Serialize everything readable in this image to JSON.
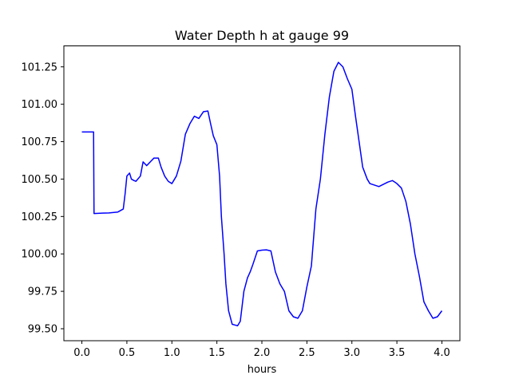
{
  "chart_data": {
    "type": "line",
    "title": "Water Depth h at gauge 99",
    "xlabel": "hours",
    "ylabel": "",
    "xlim": [
      -0.2,
      4.2
    ],
    "ylim": [
      99.42,
      101.39
    ],
    "xticks": [
      0.0,
      0.5,
      1.0,
      1.5,
      2.0,
      2.5,
      3.0,
      3.5,
      4.0
    ],
    "xtick_labels": [
      "0.0",
      "0.5",
      "1.0",
      "1.5",
      "2.0",
      "2.5",
      "3.0",
      "3.5",
      "4.0"
    ],
    "yticks": [
      99.5,
      99.75,
      100.0,
      100.25,
      100.5,
      100.75,
      101.0,
      101.25
    ],
    "ytick_labels": [
      "99.50",
      "99.75",
      "100.00",
      "100.25",
      "100.50",
      "100.75",
      "101.00",
      "101.25"
    ],
    "grid": false,
    "colors": {
      "line": "#0000ff",
      "axes": "#000000"
    },
    "series": [
      {
        "x": [
          0.0,
          0.13,
          0.135,
          0.2,
          0.3,
          0.4,
          0.46,
          0.48,
          0.5,
          0.53,
          0.55,
          0.58,
          0.6,
          0.65,
          0.68,
          0.72,
          0.76,
          0.8,
          0.85,
          0.88,
          0.92,
          0.96,
          1.0,
          1.05,
          1.1,
          1.15,
          1.2,
          1.25,
          1.3,
          1.35,
          1.4,
          1.43,
          1.46,
          1.48,
          1.5,
          1.53,
          1.55,
          1.58,
          1.6,
          1.63,
          1.67,
          1.7,
          1.73,
          1.76,
          1.8,
          1.84,
          1.87,
          1.9,
          1.95,
          2.0,
          2.05,
          2.1,
          2.15,
          2.2,
          2.25,
          2.3,
          2.35,
          2.4,
          2.45,
          2.5,
          2.55,
          2.6,
          2.65,
          2.7,
          2.75,
          2.8,
          2.85,
          2.9,
          2.95,
          3.0,
          3.04,
          3.08,
          3.12,
          3.17,
          3.2,
          3.3,
          3.4,
          3.45,
          3.5,
          3.55,
          3.6,
          3.65,
          3.7,
          3.75,
          3.8,
          3.85,
          3.9,
          3.95,
          4.0
        ],
        "y": [
          100.815,
          100.815,
          100.27,
          100.272,
          100.274,
          100.28,
          100.3,
          100.4,
          100.52,
          100.54,
          100.5,
          100.49,
          100.485,
          100.52,
          100.615,
          100.59,
          100.615,
          100.64,
          100.64,
          100.58,
          100.52,
          100.485,
          100.47,
          100.52,
          100.62,
          100.8,
          100.87,
          100.92,
          100.905,
          100.95,
          100.955,
          100.87,
          100.79,
          100.76,
          100.73,
          100.52,
          100.25,
          100.0,
          99.8,
          99.62,
          99.53,
          99.525,
          99.52,
          99.55,
          99.75,
          99.84,
          99.88,
          99.93,
          100.02,
          100.025,
          100.027,
          100.02,
          99.88,
          99.8,
          99.75,
          99.62,
          99.58,
          99.57,
          99.62,
          99.78,
          99.92,
          100.3,
          100.5,
          100.8,
          101.05,
          101.22,
          101.28,
          101.25,
          101.17,
          101.1,
          100.92,
          100.75,
          100.58,
          100.5,
          100.47,
          100.45,
          100.48,
          100.49,
          100.47,
          100.44,
          100.35,
          100.2,
          100.0,
          99.85,
          99.68,
          99.62,
          99.57,
          99.58,
          99.62
        ]
      }
    ]
  }
}
